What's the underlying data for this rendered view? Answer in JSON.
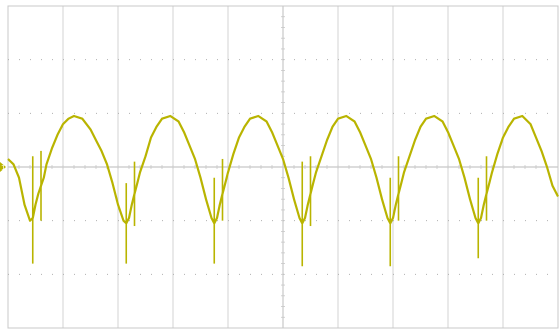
{
  "chart_data": {
    "type": "line",
    "title": "",
    "xlabel": "",
    "ylabel": "",
    "grid": true,
    "grid_divisions": {
      "x": 10,
      "y": 6
    },
    "xlim": [
      0,
      10
    ],
    "ylim": [
      -3,
      3
    ],
    "trace_color": "#b9b400",
    "grid_color": "#c8c8c8",
    "channel_marker": {
      "label": "1",
      "level": 0.0
    },
    "series": [
      {
        "x": [
          0.0,
          0.1,
          0.2,
          0.3,
          0.4,
          0.45,
          0.5,
          0.55,
          0.6,
          0.65,
          0.7,
          0.8,
          0.9,
          1.0,
          1.1,
          1.2,
          1.35,
          1.5,
          1.6,
          1.7,
          1.8,
          1.9,
          2.0,
          2.1,
          2.15,
          2.2,
          2.25,
          2.3,
          2.35,
          2.4,
          2.5,
          2.6,
          2.7,
          2.8,
          2.95,
          3.1,
          3.2,
          3.3,
          3.4,
          3.5,
          3.6,
          3.7,
          3.75,
          3.8,
          3.85,
          3.9,
          3.95,
          4.0,
          4.1,
          4.2,
          4.3,
          4.4,
          4.55,
          4.7,
          4.8,
          4.9,
          5.0,
          5.1,
          5.2,
          5.3,
          5.35,
          5.4,
          5.45,
          5.5,
          5.55,
          5.6,
          5.7,
          5.8,
          5.9,
          6.0,
          6.15,
          6.3,
          6.4,
          6.5,
          6.6,
          6.7,
          6.8,
          6.9,
          6.95,
          7.0,
          7.05,
          7.1,
          7.15,
          7.2,
          7.3,
          7.4,
          7.5,
          7.6,
          7.75,
          7.9,
          8.0,
          8.1,
          8.2,
          8.3,
          8.4,
          8.5,
          8.55,
          8.6,
          8.65,
          8.7,
          8.75,
          8.8,
          8.9,
          9.0,
          9.1,
          9.2,
          9.35,
          9.5,
          9.6,
          9.7,
          9.8,
          9.9,
          10.0
        ],
        "y": [
          0.15,
          0.05,
          -0.2,
          -0.7,
          -1.0,
          -0.95,
          -0.7,
          -0.5,
          -0.35,
          -0.2,
          0.05,
          0.35,
          0.6,
          0.8,
          0.9,
          0.95,
          0.9,
          0.7,
          0.5,
          0.3,
          0.05,
          -0.3,
          -0.7,
          -1.0,
          -1.05,
          -0.95,
          -0.7,
          -0.5,
          -0.3,
          -0.1,
          0.2,
          0.55,
          0.75,
          0.9,
          0.95,
          0.85,
          0.65,
          0.4,
          0.15,
          -0.2,
          -0.6,
          -0.95,
          -1.05,
          -0.95,
          -0.7,
          -0.5,
          -0.3,
          -0.1,
          0.25,
          0.55,
          0.75,
          0.9,
          0.95,
          0.85,
          0.65,
          0.4,
          0.15,
          -0.2,
          -0.6,
          -0.95,
          -1.05,
          -0.95,
          -0.7,
          -0.5,
          -0.3,
          -0.1,
          0.2,
          0.5,
          0.75,
          0.9,
          0.95,
          0.85,
          0.65,
          0.4,
          0.15,
          -0.2,
          -0.6,
          -0.95,
          -1.05,
          -0.95,
          -0.7,
          -0.5,
          -0.3,
          -0.1,
          0.2,
          0.5,
          0.75,
          0.9,
          0.95,
          0.85,
          0.65,
          0.4,
          0.15,
          -0.2,
          -0.6,
          -0.95,
          -1.05,
          -0.95,
          -0.7,
          -0.5,
          -0.3,
          -0.1,
          0.25,
          0.55,
          0.75,
          0.9,
          0.95,
          0.8,
          0.55,
          0.3,
          0.0,
          -0.35,
          -0.55
        ]
      }
    ],
    "spikes": [
      {
        "x": 0.45,
        "low": -1.8,
        "high": 0.2
      },
      {
        "x": 0.6,
        "low": -1.0,
        "high": 0.3
      },
      {
        "x": 2.15,
        "low": -1.8,
        "high": -0.3
      },
      {
        "x": 2.3,
        "low": -1.1,
        "high": 0.1
      },
      {
        "x": 3.75,
        "low": -1.8,
        "high": -0.2
      },
      {
        "x": 3.9,
        "low": -1.0,
        "high": 0.15
      },
      {
        "x": 5.35,
        "low": -1.85,
        "high": 0.1
      },
      {
        "x": 5.5,
        "low": -1.1,
        "high": 0.2
      },
      {
        "x": 6.95,
        "low": -1.85,
        "high": -0.2
      },
      {
        "x": 7.1,
        "low": -1.0,
        "high": 0.2
      },
      {
        "x": 8.55,
        "low": -1.7,
        "high": -0.2
      },
      {
        "x": 8.7,
        "low": -1.0,
        "high": 0.2
      }
    ]
  }
}
